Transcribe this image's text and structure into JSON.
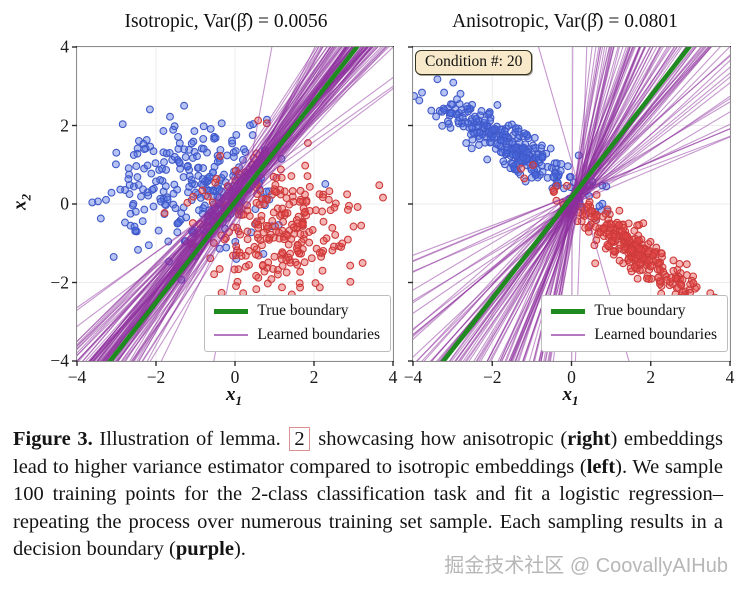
{
  "figure": {
    "watermark": "掘金技术社区 @ CoovallyAIHub"
  },
  "caption": {
    "segments": [
      {
        "text": "Figure 3.",
        "style": "bold"
      },
      {
        "text": " Illustration of lemma. ",
        "style": "normal"
      },
      {
        "text": "2",
        "style": "refbox"
      },
      {
        "text": " showcasing how anisotropic (",
        "style": "normal"
      },
      {
        "text": "right",
        "style": "bold"
      },
      {
        "text": ") embeddings lead to higher variance estimator compared to isotropic embeddings (",
        "style": "normal"
      },
      {
        "text": "left",
        "style": "bold"
      },
      {
        "text": "). We sample 100 training points for the 2-class classification task and fit a logistic regression–repeating the process over numerous training set sample. Each sampling results in a decision boundary (",
        "style": "normal"
      },
      {
        "text": "purple",
        "style": "bold"
      },
      {
        "text": ").",
        "style": "normal"
      }
    ]
  },
  "chart_data": [
    {
      "type": "scatter",
      "name": "isotropic",
      "title": "Isotropic, Var(β̂) = 0.0056",
      "variance": 0.0056,
      "xlabel_base": "x",
      "xlabel_sub": "1",
      "ylabel_base": "x",
      "ylabel_sub": "2",
      "xlim": [
        -4,
        4
      ],
      "ylim": [
        -4,
        4
      ],
      "xticks": [
        -4,
        -2,
        0,
        2,
        4
      ],
      "yticks": [
        -4,
        -2,
        0,
        2,
        4
      ],
      "xtick_labels": [
        "−4",
        "−2",
        "0",
        "2",
        "4"
      ],
      "ytick_labels": [
        "−4",
        "−2",
        "0",
        "2",
        "4"
      ],
      "show_ytick_labels": true,
      "grid": true,
      "colors": {
        "blue_fill": "rgba(72,104,226,0.40)",
        "blue_edge": "#4059c8",
        "red_fill": "rgba(232,70,70,0.40)",
        "red_edge": "#cc3a3a",
        "purple": "#8d2f9e",
        "green": "#1f8a1f",
        "grid": "#ececec",
        "spine": "#2b2b2b"
      },
      "series": [
        {
          "name": "class-blue",
          "n": 270,
          "center": [
            -0.95,
            0.55
          ],
          "sigma": [
            1.0,
            0.85
          ],
          "angle_deg": 0,
          "seed": 101
        },
        {
          "name": "class-red",
          "n": 270,
          "center": [
            0.95,
            -0.5
          ],
          "sigma": [
            1.0,
            0.85
          ],
          "angle_deg": 0,
          "seed": 202
        }
      ],
      "true_boundary": {
        "slope": 1.28,
        "intercept": 0.05,
        "width": 4.6
      },
      "learned_boundaries": {
        "count": 100,
        "pivot": [
          -0.05,
          0.08
        ],
        "pivot_jitter": 0.3,
        "angle_mean_deg": 52,
        "angle_std_deg": 4,
        "outlier_every": 12,
        "outlier_mult": 2.5,
        "opacity": 0.5,
        "width": 1.1,
        "seed": 7
      },
      "legend": {
        "position": "lower right",
        "entries": [
          {
            "label": "True boundary",
            "swatch": "green-thick"
          },
          {
            "label": "Learned boundaries",
            "swatch": "purple-thin"
          }
        ]
      }
    },
    {
      "type": "scatter",
      "name": "anisotropic",
      "title": "Anisotropic, Var(β̂) = 0.0801",
      "variance": 0.0801,
      "condition_label": "Condition #: 20",
      "xlabel_base": "x",
      "xlabel_sub": "1",
      "xlim": [
        -4,
        4
      ],
      "ylim": [
        -4,
        4
      ],
      "xticks": [
        -4,
        -2,
        0,
        2,
        4
      ],
      "yticks": [
        -4,
        -2,
        0,
        2,
        4
      ],
      "xtick_labels": [
        "−4",
        "−2",
        "0",
        "2",
        "4"
      ],
      "ytick_labels": [
        "−4",
        "−2",
        "0",
        "2",
        "4"
      ],
      "show_ytick_labels": false,
      "grid": true,
      "colors": {
        "blue_fill": "rgba(72,104,226,0.40)",
        "blue_edge": "#4059c8",
        "red_fill": "rgba(232,70,70,0.40)",
        "red_edge": "#cc3a3a",
        "purple": "#8d2f9e",
        "green": "#1f8a1f",
        "grid": "#ececec",
        "spine": "#2b2b2b"
      },
      "series": [
        {
          "name": "class-blue",
          "n": 300,
          "center": [
            -1.45,
            1.4
          ],
          "sigma": [
            1.15,
            0.23
          ],
          "angle_deg": -34,
          "seed": 303
        },
        {
          "name": "class-red",
          "n": 300,
          "center": [
            1.55,
            -1.15
          ],
          "sigma": [
            1.15,
            0.23
          ],
          "angle_deg": -38,
          "seed": 404
        }
      ],
      "true_boundary": {
        "slope": 1.29,
        "intercept": 0.17,
        "width": 4.6
      },
      "learned_boundaries": {
        "count": 100,
        "pivot": [
          0.12,
          0.18
        ],
        "pivot_jitter": 0.14,
        "angle_mean_deg": 61,
        "angle_std_deg": 15,
        "outlier_every": 9,
        "outlier_mult": 1.8,
        "opacity": 0.5,
        "width": 1.1,
        "seed": 9
      },
      "legend": {
        "position": "lower right",
        "entries": [
          {
            "label": "True boundary",
            "swatch": "green-thick"
          },
          {
            "label": "Learned boundaries",
            "swatch": "purple-thin"
          }
        ]
      }
    }
  ]
}
